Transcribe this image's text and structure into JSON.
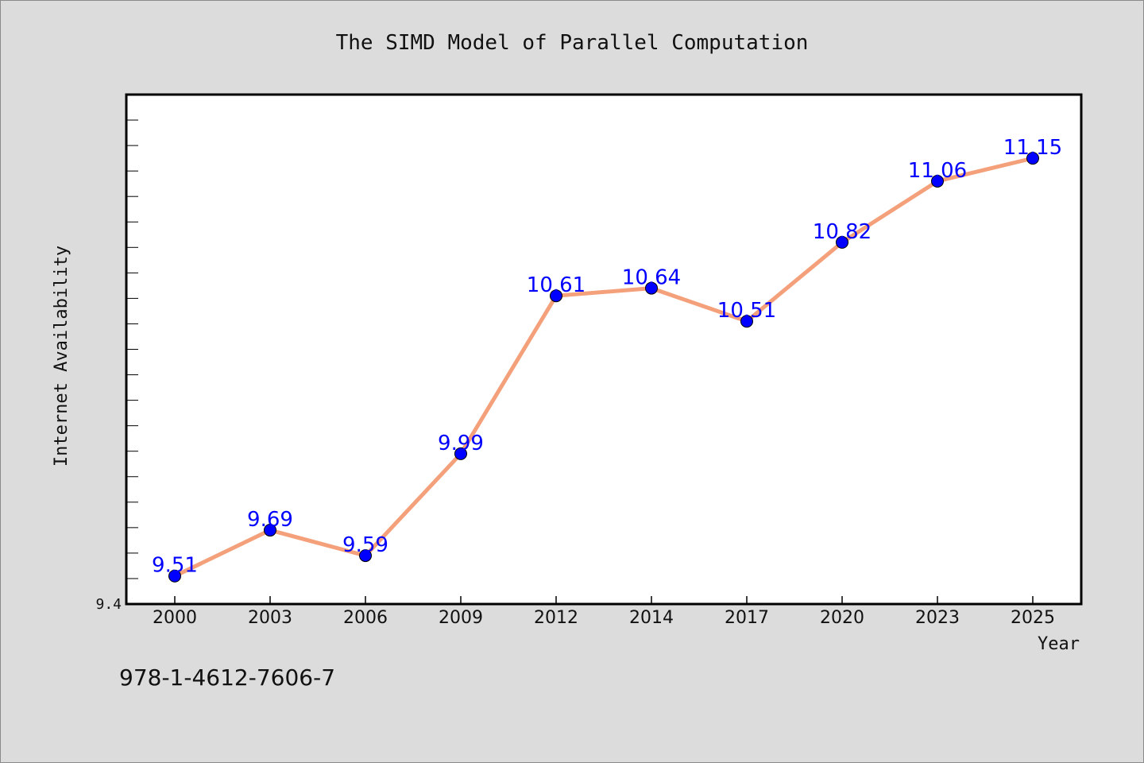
{
  "chart_data": {
    "type": "line",
    "title": "The SIMD Model of Parallel Computation",
    "xlabel": "Year",
    "ylabel": "Internet Availability",
    "categories": [
      "2000",
      "2003",
      "2006",
      "2009",
      "2012",
      "2014",
      "2017",
      "2020",
      "2023",
      "2025"
    ],
    "series": [
      {
        "values": [
          9.51,
          9.69,
          9.59,
          9.99,
          10.61,
          10.64,
          10.51,
          10.82,
          11.06,
          11.15
        ],
        "line_color": "#f4a07a",
        "marker_color": "#0000ff"
      }
    ],
    "data_labels": [
      "9.51",
      "9.69",
      "9.59",
      "9.99",
      "10.61",
      "10.64",
      "10.51",
      "10.82",
      "11.06",
      "11.15"
    ],
    "ylim": [
      9.4,
      11.4
    ],
    "y_tick_labels": [
      "9.4"
    ],
    "y_minor_tick_step": 0.1,
    "grid": false,
    "legend": "none"
  },
  "footer": {
    "isbn": "978-1-4612-7606-7"
  },
  "colors": {
    "background": "#dcdcdc",
    "plot_background": "#ffffff",
    "axis": "#000000"
  }
}
